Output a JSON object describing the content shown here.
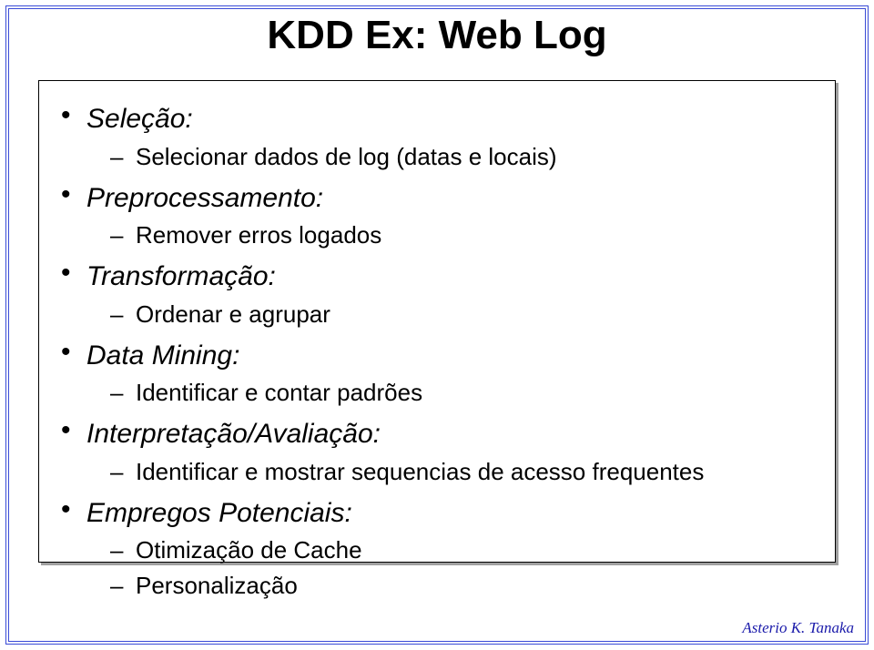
{
  "title": "KDD Ex:  Web Log",
  "items": [
    {
      "label": "Seleção:",
      "sub": [
        "Selecionar dados de log (datas e locais)"
      ]
    },
    {
      "label": "Preprocessamento:",
      "sub": [
        "Remover erros logados"
      ]
    },
    {
      "label": "Transformação:",
      "sub": [
        "Ordenar e agrupar"
      ]
    },
    {
      "label": "Data Mining:",
      "sub": [
        "Identificar e contar padrões"
      ]
    },
    {
      "label": "Interpretação/Avaliação:",
      "sub": [
        "Identificar e mostrar sequencias de acesso frequentes"
      ]
    },
    {
      "label": "Empregos Potenciais:",
      "sub": [
        "Otimização de Cache",
        "Personalização"
      ]
    }
  ],
  "footer": "Asterio K. Tanaka",
  "style": {
    "border_color": "#3a4bd6",
    "title_fontsize": 44,
    "lvl1_fontsize": 30,
    "lvl2_fontsize": 26,
    "footer_color": "#1a1aaa",
    "background": "#ffffff"
  }
}
